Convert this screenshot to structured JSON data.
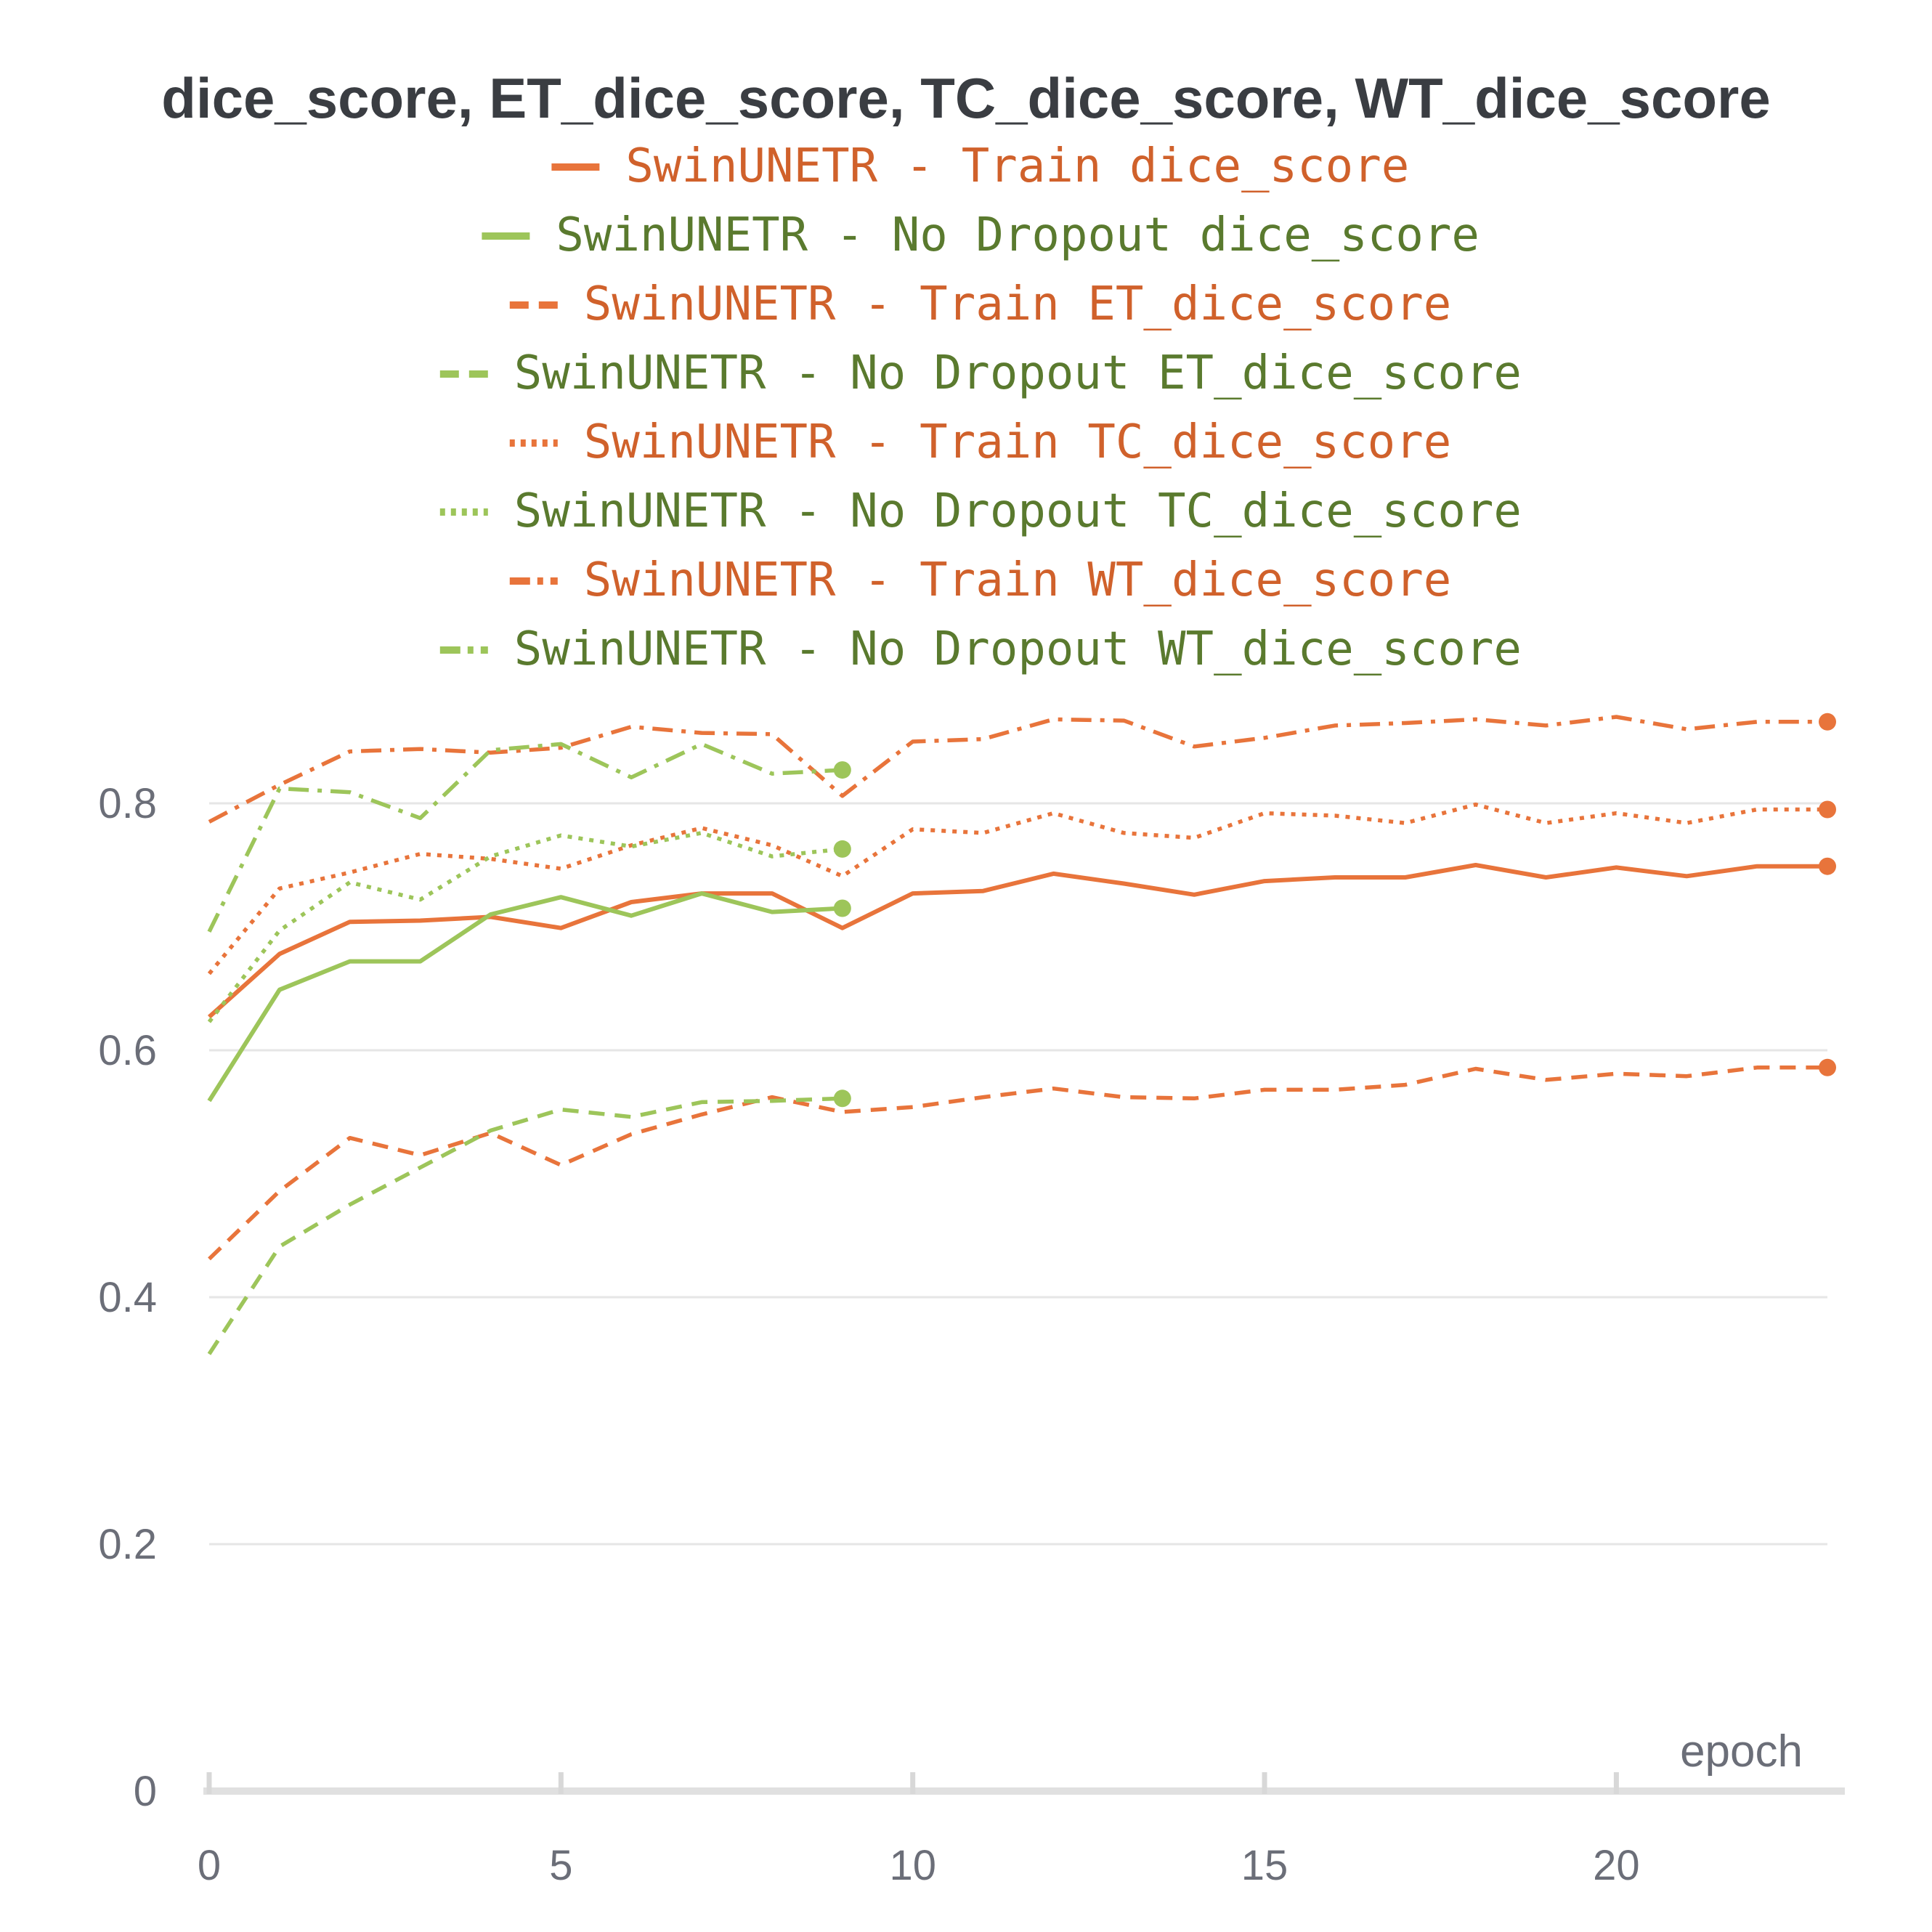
{
  "chart_data": {
    "type": "line",
    "title": "dice_score, ET_dice_score, TC_dice_score, WT_dice_score",
    "xlabel": "epoch",
    "ylabel": "",
    "xlim": [
      0,
      23
    ],
    "ylim": [
      0,
      0.9
    ],
    "xticks": [
      0,
      5,
      10,
      15,
      20
    ],
    "yticks": [
      0,
      0.2,
      0.4,
      0.6,
      0.8
    ],
    "grid": true,
    "legend_position": "top-center",
    "colors": {
      "train": "#e8743b",
      "no_dropout": "#9dc55a",
      "no_dropout_text": "#5a7a2e",
      "train_text": "#d0612b"
    },
    "series": [
      {
        "name": "SwinUNETR - Train dice_score",
        "group": "train",
        "dash": "solid",
        "x": [
          0,
          1,
          2,
          3,
          4,
          5,
          6,
          7,
          8,
          9,
          10,
          11,
          12,
          13,
          14,
          15,
          16,
          17,
          18,
          19,
          20,
          21,
          22,
          23
        ],
        "y": [
          0.627,
          0.678,
          0.704,
          0.705,
          0.708,
          0.699,
          0.72,
          0.727,
          0.727,
          0.699,
          0.727,
          0.729,
          0.743,
          0.735,
          0.726,
          0.737,
          0.74,
          0.74,
          0.75,
          0.74,
          0.748,
          0.741,
          0.749,
          0.749
        ]
      },
      {
        "name": "SwinUNETR - No Dropout dice_score",
        "group": "no_dropout",
        "dash": "solid",
        "x": [
          0,
          1,
          2,
          3,
          4,
          5,
          6,
          7,
          8,
          9
        ],
        "y": [
          0.559,
          0.649,
          0.672,
          0.672,
          0.71,
          0.724,
          0.709,
          0.727,
          0.712,
          0.715
        ]
      },
      {
        "name": "SwinUNETR - Train ET_dice_score",
        "group": "train",
        "dash": "dashed",
        "x": [
          0,
          1,
          2,
          3,
          4,
          5,
          6,
          7,
          8,
          9,
          10,
          11,
          12,
          13,
          14,
          15,
          16,
          17,
          18,
          19,
          20,
          21,
          22,
          23
        ],
        "y": [
          0.431,
          0.486,
          0.529,
          0.515,
          0.533,
          0.507,
          0.532,
          0.548,
          0.562,
          0.55,
          0.554,
          0.562,
          0.569,
          0.562,
          0.561,
          0.568,
          0.568,
          0.572,
          0.585,
          0.576,
          0.581,
          0.579,
          0.586,
          0.586
        ]
      },
      {
        "name": "SwinUNETR - No Dropout ET_dice_score",
        "group": "no_dropout",
        "dash": "dashed",
        "x": [
          0,
          1,
          2,
          3,
          4,
          5,
          6,
          7,
          8,
          9
        ],
        "y": [
          0.354,
          0.441,
          0.475,
          0.505,
          0.535,
          0.552,
          0.546,
          0.558,
          0.559,
          0.561
        ]
      },
      {
        "name": "SwinUNETR - Train TC_dice_score",
        "group": "train",
        "dash": "dotted",
        "x": [
          0,
          1,
          2,
          3,
          4,
          5,
          6,
          7,
          8,
          9,
          10,
          11,
          12,
          13,
          14,
          15,
          16,
          17,
          18,
          19,
          20,
          21,
          22,
          23
        ],
        "y": [
          0.662,
          0.731,
          0.744,
          0.759,
          0.755,
          0.747,
          0.766,
          0.78,
          0.766,
          0.741,
          0.779,
          0.776,
          0.792,
          0.776,
          0.772,
          0.792,
          0.79,
          0.784,
          0.799,
          0.784,
          0.792,
          0.784,
          0.795,
          0.795
        ]
      },
      {
        "name": "SwinUNETR - No Dropout TC_dice_score",
        "group": "no_dropout",
        "dash": "dotted",
        "x": [
          0,
          1,
          2,
          3,
          4,
          5,
          6,
          7,
          8,
          9
        ],
        "y": [
          0.623,
          0.697,
          0.736,
          0.722,
          0.757,
          0.774,
          0.765,
          0.776,
          0.757,
          0.763
        ]
      },
      {
        "name": "SwinUNETR - Train WT_dice_score",
        "group": "train",
        "dash": "dashdot",
        "x": [
          0,
          1,
          2,
          3,
          4,
          5,
          6,
          7,
          8,
          9,
          10,
          11,
          12,
          13,
          14,
          15,
          16,
          17,
          18,
          19,
          20,
          21,
          22,
          23
        ],
        "y": [
          0.785,
          0.815,
          0.842,
          0.844,
          0.841,
          0.845,
          0.862,
          0.857,
          0.856,
          0.806,
          0.85,
          0.852,
          0.868,
          0.867,
          0.846,
          0.853,
          0.863,
          0.865,
          0.868,
          0.863,
          0.87,
          0.86,
          0.866,
          0.866
        ]
      },
      {
        "name": "SwinUNETR - No Dropout WT_dice_score",
        "group": "no_dropout",
        "dash": "dashdot",
        "x": [
          0,
          1,
          2,
          3,
          4,
          5,
          6,
          7,
          8,
          9
        ],
        "y": [
          0.696,
          0.812,
          0.809,
          0.788,
          0.843,
          0.848,
          0.821,
          0.848,
          0.824,
          0.827
        ]
      }
    ]
  }
}
